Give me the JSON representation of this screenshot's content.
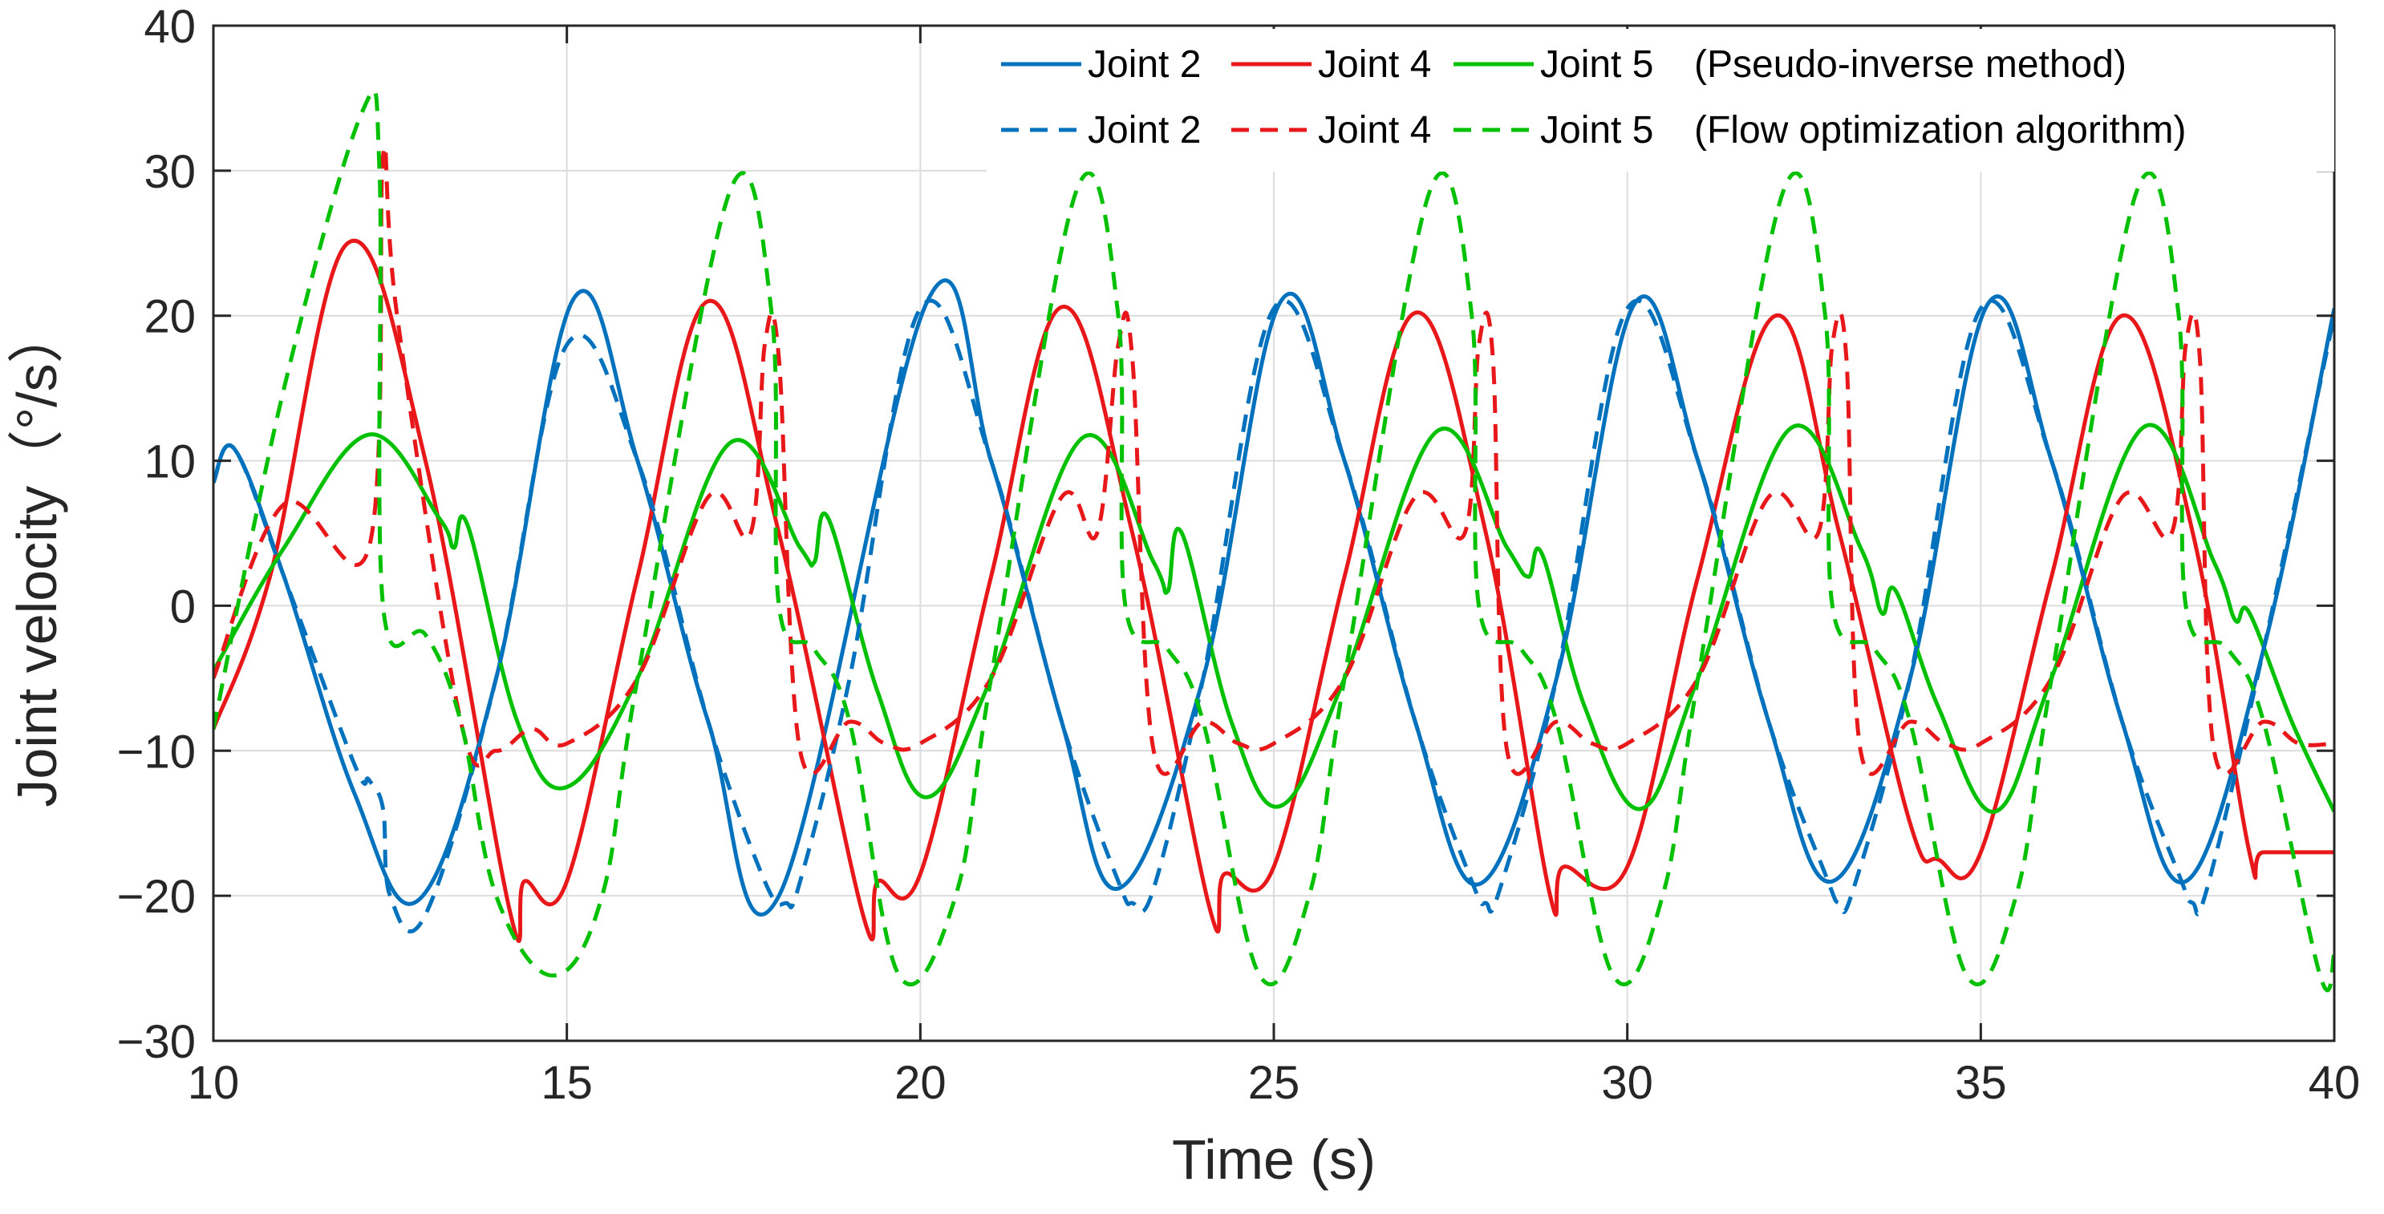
{
  "chart_data": {
    "type": "line",
    "title": "",
    "xlabel": "Time (s)",
    "ylabel": "Joint velocity（°/s）",
    "xlim": [
      10,
      40
    ],
    "ylim": [
      -30,
      40
    ],
    "xticks": [
      10,
      15,
      20,
      25,
      30,
      35,
      40
    ],
    "yticks": [
      -30,
      -20,
      -10,
      0,
      10,
      20,
      30,
      40
    ],
    "xtick_labels": [
      "10",
      "15",
      "20",
      "25",
      "30",
      "35",
      "40"
    ],
    "ytick_labels": [
      "−30",
      "−20",
      "−10",
      "0",
      "10",
      "20",
      "30",
      "40"
    ],
    "grid": true,
    "legend_position": "top-right",
    "legend_rows": [
      {
        "suffix": "(Pseudo-inverse method)",
        "style": "solid"
      },
      {
        "suffix": "(Flow optimization algorithm)",
        "style": "dashed"
      }
    ],
    "series": [
      {
        "name": "Joint 2",
        "method": "Pseudo-inverse method",
        "color": "#0072BD",
        "style": "solid",
        "x": [
          10,
          10.3,
          11,
          12,
          12.9,
          14,
          15.1,
          16,
          17,
          18,
          20.1,
          21,
          22,
          22.8,
          24,
          25.1,
          26,
          27,
          27.9,
          29,
          30.1,
          31,
          32,
          32.9,
          34,
          35.1,
          36,
          37,
          37.9,
          39,
          40
        ],
        "y": [
          8.5,
          10.8,
          2,
          -13,
          -20.3,
          -5,
          21.2,
          10,
          -8,
          -20,
          21,
          10,
          -8,
          -19.5,
          -5,
          21,
          10,
          -8,
          -19.2,
          -5,
          20.8,
          10,
          -8,
          -19,
          -5,
          20.8,
          10,
          -8,
          -19,
          -3,
          20.5
        ]
      },
      {
        "name": "Joint 4",
        "method": "Pseudo-inverse method",
        "color": "#E8171A",
        "style": "solid",
        "x": [
          10,
          10.8,
          11.9,
          13,
          14.2,
          14.4,
          15,
          16,
          17,
          18,
          19.2,
          19.4,
          20,
          21,
          22,
          23,
          24.1,
          24.3,
          25,
          26,
          27,
          28,
          28.9,
          29.1,
          30,
          31,
          32.1,
          33,
          34,
          34.4,
          35,
          36,
          37,
          38,
          38.8,
          39,
          40
        ],
        "y": [
          -8.5,
          2,
          25,
          10,
          -21.2,
          -19,
          -19,
          2,
          21,
          5,
          -21.5,
          -19,
          -18.5,
          2,
          20.6,
          5,
          -21,
          -18.5,
          -18,
          2,
          20.2,
          5,
          -19.8,
          -18,
          -18,
          2,
          20,
          5,
          -15,
          -17.5,
          -17,
          2,
          20,
          5,
          -17,
          -17,
          -17
        ]
      },
      {
        "name": "Joint 5",
        "method": "Pseudo-inverse method",
        "color": "#00C000",
        "style": "solid",
        "x": [
          10,
          11,
          12.2,
          13.2,
          13.4,
          13.6,
          14.3,
          15,
          16,
          17.3,
          18.3,
          18.5,
          18.7,
          19.4,
          20.1,
          21,
          22.3,
          23.3,
          23.5,
          23.7,
          24.4,
          25.1,
          26,
          27.3,
          28.3,
          28.6,
          28.8,
          29.4,
          30.2,
          31,
          32.3,
          33.3,
          33.6,
          33.8,
          34.4,
          35.2,
          36,
          37.3,
          38.3,
          38.6,
          38.8,
          39.4,
          40
        ],
        "y": [
          -4.5,
          4,
          11.8,
          6,
          4,
          5.5,
          -8,
          -12.5,
          -5,
          11.2,
          4,
          3,
          6,
          -6,
          -13.2,
          -5,
          11.6,
          3,
          1,
          5,
          -8,
          -13.8,
          -5,
          12,
          4,
          2,
          3.5,
          -7,
          -14,
          -5,
          12.2,
          4,
          -0.5,
          1,
          -7,
          -14.2,
          -5,
          12.3,
          3,
          -1,
          -0.5,
          -8,
          -14.2
        ]
      },
      {
        "name": "Joint 2",
        "method": "Flow optimization algorithm",
        "color": "#0072BD",
        "style": "dashed",
        "x": [
          10,
          10.3,
          11,
          12,
          12.2,
          12.4,
          12.5,
          13,
          14,
          15,
          16,
          17,
          17.8,
          18.1,
          18.3,
          19,
          20,
          21,
          22,
          22.8,
          23,
          23.3,
          24,
          25,
          26,
          27,
          27.8,
          28,
          28.2,
          29,
          30,
          31,
          32,
          32.8,
          33,
          33.2,
          34,
          35,
          36,
          37,
          37.8,
          38,
          38.2,
          39,
          40
        ],
        "y": [
          8.5,
          10.8,
          2,
          -11,
          -12,
          -14,
          -20,
          -21.3,
          -5,
          18,
          10,
          -8,
          -19,
          -20.5,
          -19,
          -5,
          20.5,
          10,
          -8,
          -19,
          -20.5,
          -19.5,
          -5,
          20.5,
          10,
          -8,
          -19,
          -20.5,
          -19.5,
          -5,
          20.5,
          10,
          -8,
          -18.5,
          -20.5,
          -19.5,
          -5,
          20.5,
          10,
          -8,
          -18.5,
          -20.5,
          -19.5,
          -3,
          20
        ]
      },
      {
        "name": "Joint 4",
        "method": "Flow optimization algorithm",
        "color": "#E8171A",
        "style": "dashed",
        "x": [
          10,
          11,
          12.2,
          12.4,
          12.6,
          13.5,
          14,
          14.5,
          15,
          16,
          17,
          17.6,
          17.8,
          18,
          18.3,
          19,
          19.5,
          20,
          21,
          22,
          22.5,
          22.8,
          23,
          23.3,
          24,
          24.5,
          25,
          26,
          27,
          27.7,
          27.9,
          28.1,
          28.3,
          29,
          29.5,
          30,
          31,
          32,
          32.7,
          32.9,
          33.1,
          33.3,
          34,
          34.5,
          35,
          36,
          37,
          37.7,
          37.9,
          38.1,
          38.3,
          39,
          39.5,
          40
        ],
        "y": [
          -5,
          7,
          4,
          31,
          20,
          -8,
          -10,
          -8.5,
          -9.5,
          -5,
          7.5,
          5,
          18,
          17,
          -10,
          -8,
          -9.5,
          -9.5,
          -5,
          7.5,
          5,
          18,
          17,
          -10,
          -8,
          -9.5,
          -9.5,
          -5,
          7.5,
          5,
          18,
          17,
          -10,
          -8,
          -9.5,
          -9.5,
          -5,
          7.5,
          5,
          18,
          17,
          -10,
          -8,
          -9.5,
          -9.5,
          -5,
          7.5,
          5,
          18,
          17,
          -10,
          -8,
          -9.5,
          -9.5
        ]
      },
      {
        "name": "Joint 5",
        "method": "Flow optimization algorithm",
        "color": "#00C000",
        "style": "dashed",
        "x": [
          10,
          11,
          12.1,
          12.35,
          12.4,
          13,
          13.5,
          14,
          14.8,
          15.5,
          16,
          17.3,
          17.9,
          18,
          18.5,
          19,
          19.7,
          20.5,
          21,
          22.2,
          22.8,
          22.9,
          23.5,
          24,
          24.8,
          25.5,
          26,
          27.2,
          27.8,
          27.9,
          28.5,
          29,
          29.8,
          30.5,
          31,
          32.2,
          32.8,
          32.9,
          33.5,
          34,
          34.8,
          35.5,
          36,
          37.2,
          37.8,
          37.9,
          38.5,
          39,
          39.8,
          40
        ],
        "y": [
          -8.5,
          15,
          34,
          30,
          0,
          -2,
          -8,
          -20,
          -25.5,
          -20,
          -5,
          28.5,
          20,
          0,
          -3,
          -8,
          -25.5,
          -20,
          -5,
          28.5,
          20,
          0,
          -3,
          -8,
          -25.5,
          -20,
          -5,
          28.5,
          20,
          0,
          -3,
          -8,
          -25.5,
          -20,
          -5,
          28.5,
          20,
          0,
          -3,
          -8,
          -25.5,
          -20,
          -5,
          28.5,
          20,
          0,
          -3,
          -8,
          -25.5,
          -24
        ]
      }
    ]
  }
}
